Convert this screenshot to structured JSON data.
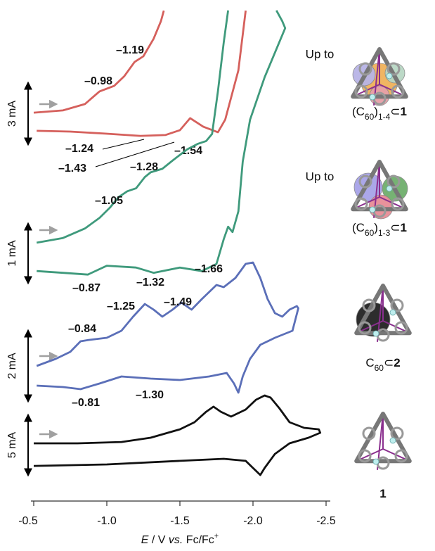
{
  "chart_data": {
    "type": "line",
    "x_label_parts": [
      "E",
      " / V ",
      "vs.",
      " Fc/Fc",
      "+"
    ],
    "xlim": [
      -0.5,
      -2.5
    ],
    "xticks": [
      {
        "value": -0.5,
        "label": "-0.5"
      },
      {
        "value": -1,
        "label": "-1.0"
      },
      {
        "value": -1.5,
        "label": "-1.5"
      },
      {
        "value": -2,
        "label": "-2.0"
      },
      {
        "value": -2.5,
        "label": "-2.5"
      }
    ],
    "series": [
      {
        "color": "#d5605c",
        "caption_prefix": "Up to",
        "caption_parts": [
          "(C",
          "60",
          ")",
          "1-4",
          "⊂",
          "1"
        ],
        "scale_bar": {
          "value": 3,
          "label": "3 mA"
        },
        "peak_labels": [
          "–0.98",
          "–1.19",
          "–1.24",
          "–1.43",
          "–1.54"
        ],
        "x": [
          -0.5,
          -0.7,
          -0.85,
          -0.95,
          -1.05,
          -1.12,
          -1.19,
          -1.25,
          -1.32,
          -1.37,
          -1.39,
          null,
          -1.95,
          -1.9,
          -1.81,
          -1.76,
          -1.66,
          -1.57,
          -1.5,
          -1.4,
          -1.23,
          -0.99,
          -0.75,
          -0.52
        ],
        "values": [
          1.55,
          1.66,
          1.97,
          2.59,
          2.86,
          3.34,
          4.03,
          4.31,
          5.17,
          6.03,
          6.55,
          null,
          6.55,
          3.62,
          1.21,
          0.59,
          0.86,
          1.28,
          0.69,
          0.45,
          0.41,
          0.52,
          0.62,
          0.66
        ]
      },
      {
        "color": "#3f9a7c",
        "caption_prefix": "Up to",
        "caption_parts": [
          "(C",
          "60",
          ")",
          "1-3",
          "⊂",
          "1"
        ],
        "scale_bar": {
          "value": 1,
          "label": "1 mA"
        },
        "peak_labels": [
          "–1.05",
          "–1.28",
          "–0.87",
          "–1.32",
          "–1.66"
        ],
        "x": [
          -0.52,
          -0.7,
          -0.85,
          -0.95,
          -1.02,
          -1.08,
          -1.14,
          -1.2,
          -1.26,
          -1.3,
          -1.38,
          -1.45,
          -1.55,
          -1.62,
          -1.68,
          -1.72,
          -1.76,
          -1.8,
          -1.83,
          null,
          -2.16,
          -2.2,
          -2.22,
          -2.18,
          -2.08,
          -1.98,
          -1.93,
          -1.9,
          -1.86,
          -1.83,
          -1.8,
          -1.75,
          -1.65,
          -1.5,
          -1.32,
          -1.2,
          -1.0,
          -0.87,
          -0.7,
          -0.52
        ],
        "values": [
          0.68,
          0.76,
          0.92,
          1.1,
          1.27,
          1.45,
          1.55,
          1.6,
          1.79,
          1.87,
          1.93,
          2.07,
          2.26,
          2.35,
          2.4,
          2.52,
          3.24,
          4.07,
          4.61,
          null,
          4.61,
          4.43,
          4.31,
          4.07,
          3.48,
          2.76,
          2.05,
          1.21,
          0.86,
          0.95,
          0.74,
          0.32,
          0.2,
          0.26,
          0.17,
          0.26,
          0.29,
          0.14,
          0.17,
          0.2
        ]
      },
      {
        "color": "#5b6fb8",
        "caption_parts": [
          "C",
          "60",
          "⊂",
          "2"
        ],
        "scale_bar": {
          "value": 2,
          "label": "2 mA"
        },
        "peak_labels": [
          "–0.84",
          "–1.25",
          "–1.49",
          "–0.81",
          "–1.30"
        ],
        "x": [
          -0.52,
          -0.65,
          -0.75,
          -0.82,
          -0.88,
          -1.0,
          -1.1,
          -1.18,
          -1.26,
          -1.32,
          -1.38,
          -1.45,
          -1.51,
          -1.58,
          -1.65,
          -1.75,
          -1.8,
          -1.88,
          -1.95,
          -2.0,
          -2.05,
          -2.1,
          -2.15,
          -2.2,
          -2.25,
          -2.3,
          -2.31,
          -2.27,
          -2.15,
          -2.05,
          -1.98,
          -1.93,
          -1.9,
          -1.87,
          -1.82,
          -1.7,
          -1.5,
          -1.3,
          -1.1,
          -0.95,
          -0.82,
          -0.7,
          -0.52
        ],
        "values": [
          1.0,
          1.2,
          1.4,
          1.7,
          1.74,
          1.8,
          2.0,
          2.4,
          2.76,
          2.6,
          2.4,
          2.6,
          2.8,
          2.6,
          2.9,
          3.3,
          3.24,
          3.5,
          3.9,
          3.94,
          3.5,
          2.9,
          2.5,
          2.4,
          2.6,
          2.7,
          2.64,
          2.0,
          1.8,
          1.6,
          1.2,
          0.7,
          0.24,
          0.5,
          0.8,
          0.7,
          0.6,
          0.64,
          0.7,
          0.5,
          0.34,
          0.4,
          0.44
        ]
      },
      {
        "color": "#111111",
        "caption_parts": [
          "1"
        ],
        "scale_bar": {
          "value": 5,
          "label": "5 mA"
        },
        "x": [
          -0.5,
          -0.8,
          -1.1,
          -1.3,
          -1.5,
          -1.6,
          -1.68,
          -1.73,
          -1.78,
          -1.85,
          -1.95,
          -2.02,
          -2.08,
          -2.12,
          -2.18,
          -2.25,
          -2.35,
          -2.45,
          -2.46,
          -2.38,
          -2.25,
          -2.15,
          -2.08,
          -2.05,
          -2.0,
          -1.95,
          -1.8,
          -1.5,
          -1.0,
          -0.5
        ],
        "values": [
          2.65,
          2.65,
          2.76,
          3.12,
          3.82,
          4.41,
          5.29,
          5.71,
          5.29,
          4.88,
          5.47,
          6.29,
          6.65,
          6.47,
          5.59,
          4.41,
          3.94,
          3.82,
          3.53,
          3.12,
          2.65,
          1.76,
          0.59,
          0,
          0.59,
          1.18,
          1.35,
          1.18,
          0.88,
          0.76
        ]
      }
    ]
  }
}
